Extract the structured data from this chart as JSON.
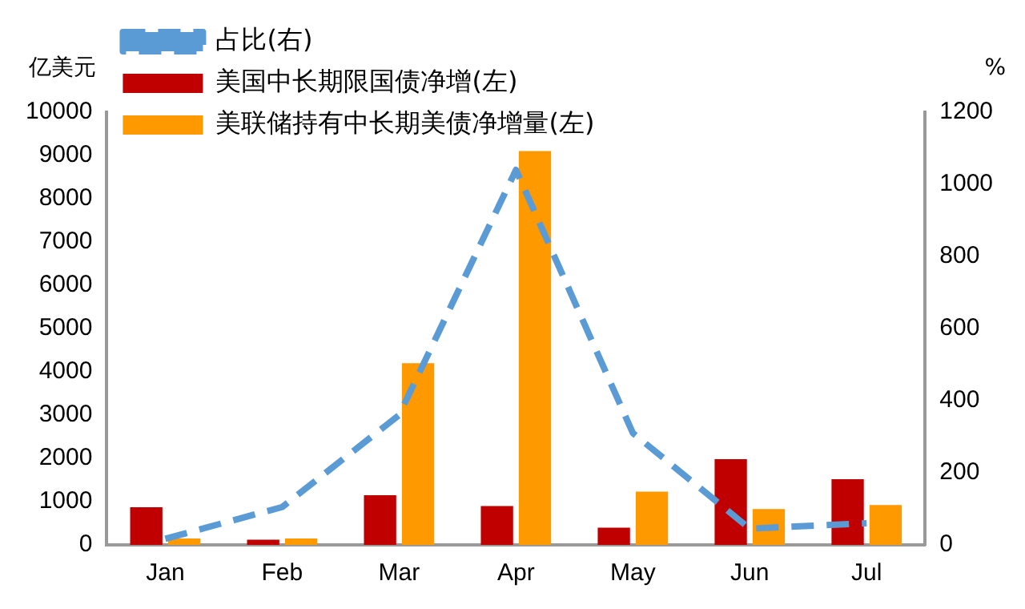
{
  "chart_data": {
    "type": "bar",
    "ylabel": "亿美元",
    "y2label": "%",
    "categories": [
      "Jan",
      "Feb",
      "Mar",
      "Apr",
      "May",
      "Jun",
      "Jul"
    ],
    "series": [
      {
        "name": "美国中长期限国债净增(左)",
        "color": "#c00000",
        "values": [
          870,
          120,
          1150,
          900,
          400,
          1980,
          1520
        ]
      },
      {
        "name": "美联储持有中长期美债净增量(左)",
        "color": "#ff9900",
        "values": [
          150,
          150,
          4200,
          9100,
          1230,
          830,
          920
        ]
      },
      {
        "name": "占比(右)",
        "type": "line",
        "axis": "y2",
        "color": "#5b9bd5",
        "line_style": "dashed",
        "values": [
          17,
          105,
          360,
          1040,
          310,
          45,
          60
        ]
      }
    ],
    "ylim": [
      0,
      10000
    ],
    "yticks": [
      0,
      1000,
      2000,
      3000,
      4000,
      5000,
      6000,
      7000,
      8000,
      9000,
      10000
    ],
    "y2lim": [
      0,
      1200
    ],
    "y2ticks": [
      0,
      200,
      400,
      600,
      800,
      1000,
      1200
    ],
    "grid": false,
    "legend": "top left",
    "marker": "none"
  }
}
